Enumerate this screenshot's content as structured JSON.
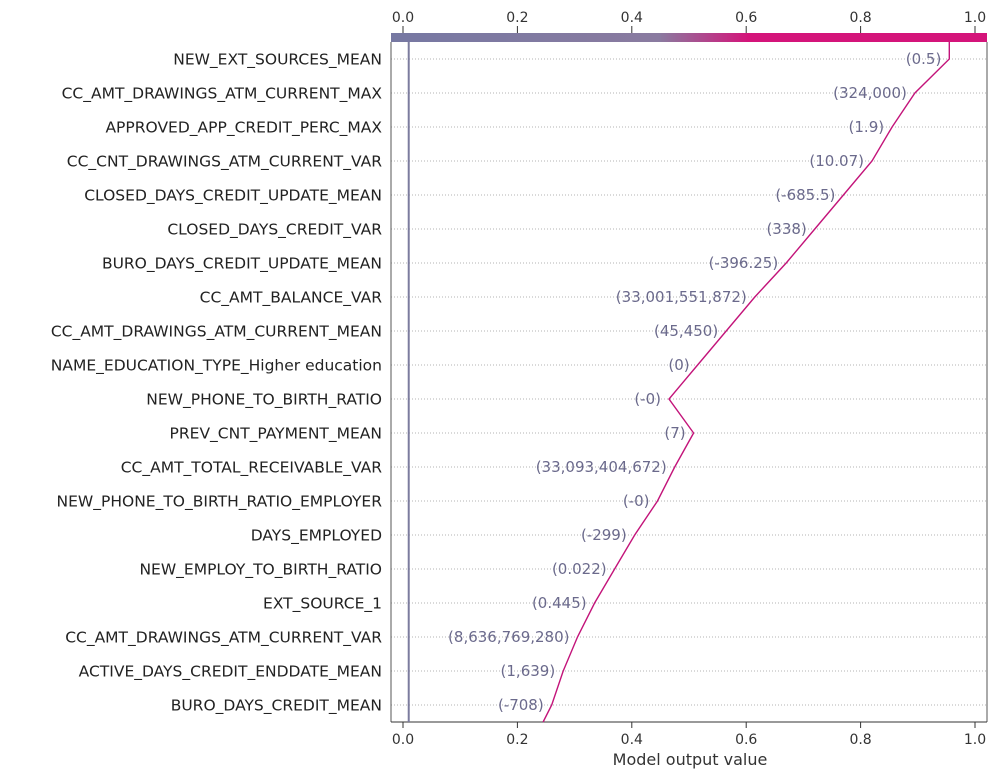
{
  "chart_data": {
    "type": "line",
    "title": "",
    "xlabel": "Model output value",
    "ylabel": "",
    "xlim": [
      -0.02,
      1.02
    ],
    "xticks": [
      0.0,
      0.2,
      0.4,
      0.6,
      0.8,
      1.0
    ],
    "xtick_labels": [
      "0.0",
      "0.2",
      "0.4",
      "0.6",
      "0.8",
      "1.0"
    ],
    "base_value": 0.01,
    "start_value": 0.245,
    "final_value": 0.955,
    "grid": "horizontal dotted",
    "colorbar": {
      "from": 0.0,
      "to": 1.0,
      "low_color": "#7678a2",
      "high_color": "#d4147a"
    },
    "colors": {
      "line": "#c3147a",
      "value_label": "#6b6a8c",
      "base_line": "#7c7c9e"
    },
    "features": [
      {
        "name": "NEW_EXT_SOURCES_MEAN",
        "label": "(0.5)",
        "output": 0.955
      },
      {
        "name": "CC_AMT_DRAWINGS_ATM_CURRENT_MAX",
        "label": "(324,000)",
        "output": 0.895
      },
      {
        "name": "APPROVED_APP_CREDIT_PERC_MAX",
        "label": "(1.9)",
        "output": 0.855
      },
      {
        "name": "CC_CNT_DRAWINGS_ATM_CURRENT_VAR",
        "label": "(10.07)",
        "output": 0.82
      },
      {
        "name": "CLOSED_DAYS_CREDIT_UPDATE_MEAN",
        "label": "(-685.5)",
        "output": 0.77
      },
      {
        "name": "CLOSED_DAYS_CREDIT_VAR",
        "label": "(338)",
        "output": 0.72
      },
      {
        "name": "BURO_DAYS_CREDIT_UPDATE_MEAN",
        "label": "(-396.25)",
        "output": 0.67
      },
      {
        "name": "CC_AMT_BALANCE_VAR",
        "label": "(33,001,551,872)",
        "output": 0.615
      },
      {
        "name": "CC_AMT_DRAWINGS_ATM_CURRENT_MEAN",
        "label": "(45,450)",
        "output": 0.565
      },
      {
        "name": "NAME_EDUCATION_TYPE_Higher education",
        "label": "(0)",
        "output": 0.515
      },
      {
        "name": "NEW_PHONE_TO_BIRTH_RATIO",
        "label": "(-0)",
        "output": 0.465
      },
      {
        "name": "PREV_CNT_PAYMENT_MEAN",
        "label": "(7)",
        "output": 0.508
      },
      {
        "name": "CC_AMT_TOTAL_RECEIVABLE_VAR",
        "label": "(33,093,404,672)",
        "output": 0.475
      },
      {
        "name": "NEW_PHONE_TO_BIRTH_RATIO_EMPLOYER",
        "label": "(-0)",
        "output": 0.445
      },
      {
        "name": "DAYS_EMPLOYED",
        "label": "(-299)",
        "output": 0.405
      },
      {
        "name": "NEW_EMPLOY_TO_BIRTH_RATIO",
        "label": "(0.022)",
        "output": 0.37
      },
      {
        "name": "EXT_SOURCE_1",
        "label": "(0.445)",
        "output": 0.335
      },
      {
        "name": "CC_AMT_DRAWINGS_ATM_CURRENT_VAR",
        "label": "(8,636,769,280)",
        "output": 0.305
      },
      {
        "name": "ACTIVE_DAYS_CREDIT_ENDDATE_MEAN",
        "label": "(1,639)",
        "output": 0.28
      },
      {
        "name": "BURO_DAYS_CREDIT_MEAN",
        "label": "(-708)",
        "output": 0.26
      }
    ]
  }
}
